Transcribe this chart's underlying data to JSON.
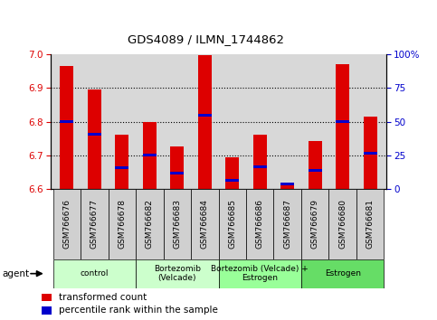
{
  "title": "GDS4089 / ILMN_1744862",
  "samples": [
    "GSM766676",
    "GSM766677",
    "GSM766678",
    "GSM766682",
    "GSM766683",
    "GSM766684",
    "GSM766685",
    "GSM766686",
    "GSM766687",
    "GSM766679",
    "GSM766680",
    "GSM766681"
  ],
  "red_values": [
    6.965,
    6.895,
    6.76,
    6.8,
    6.727,
    6.997,
    6.695,
    6.76,
    6.614,
    6.743,
    6.97,
    6.815
  ],
  "blue_values": [
    6.8,
    6.762,
    6.662,
    6.7,
    6.648,
    6.82,
    6.625,
    6.666,
    6.615,
    6.656,
    6.8,
    6.706
  ],
  "ylim_left": [
    6.6,
    7.0
  ],
  "ylim_right": [
    0,
    100
  ],
  "yticks_left": [
    6.6,
    6.7,
    6.8,
    6.9,
    7.0
  ],
  "yticks_right": [
    0,
    25,
    50,
    75,
    100
  ],
  "ytick_labels_right": [
    "0",
    "25",
    "50",
    "75",
    "100%"
  ],
  "bar_width": 0.5,
  "red_color": "#dd0000",
  "blue_color": "#0000cc",
  "left_axis_color": "#dd0000",
  "right_axis_color": "#0000cc",
  "legend_red": "transformed count",
  "legend_blue": "percentile rank within the sample",
  "agent_label": "agent",
  "plot_bg_color": "#d8d8d8",
  "tick_box_color": "#d0d0d0",
  "group_configs": [
    {
      "label": "control",
      "start": 0,
      "end": 3,
      "color": "#ccffcc"
    },
    {
      "label": "Bortezomib\n(Velcade)",
      "start": 3,
      "end": 6,
      "color": "#ccffcc"
    },
    {
      "label": "Bortezomib (Velcade) +\nEstrogen",
      "start": 6,
      "end": 9,
      "color": "#99ff99"
    },
    {
      "label": "Estrogen",
      "start": 9,
      "end": 12,
      "color": "#66dd66"
    }
  ]
}
